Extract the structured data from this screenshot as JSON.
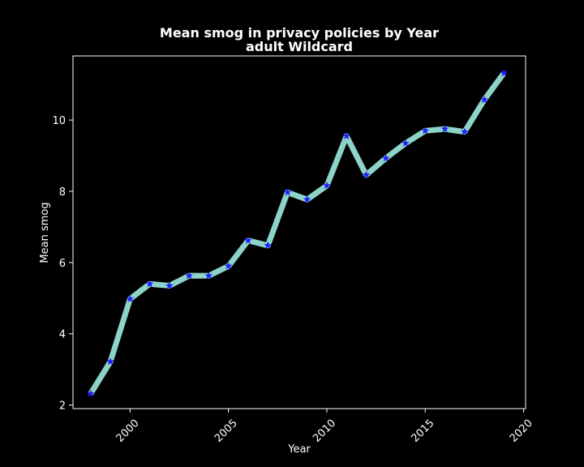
{
  "colors": {
    "background": "#000000",
    "foreground": "#ffffff",
    "line": "#8dd3c7",
    "marker": "#1f1fff"
  },
  "chart_data": {
    "type": "line",
    "title": "Mean smog in privacy policies by Year",
    "subtitle": "adult Wildcard",
    "xlabel": "Year",
    "ylabel": "Mean smog",
    "xlim": [
      1997.1,
      2020.1
    ],
    "ylim": [
      1.9,
      11.8
    ],
    "xticks": [
      2000,
      2005,
      2010,
      2015,
      2020
    ],
    "xtick_labels": [
      "2000",
      "2005",
      "2010",
      "2015",
      "2020"
    ],
    "yticks": [
      2,
      4,
      6,
      8,
      10
    ],
    "ytick_labels": [
      "2",
      "4",
      "6",
      "8",
      "10"
    ],
    "grid": false,
    "marker": "star",
    "series": [
      {
        "x": [
          1998,
          1999,
          2000,
          2001,
          2002,
          2003,
          2004,
          2005,
          2006,
          2007,
          2008,
          2009,
          2010,
          2011,
          2012,
          2013,
          2014,
          2015,
          2016,
          2017,
          2018,
          2019
        ],
        "values": [
          2.32,
          3.22,
          4.98,
          5.4,
          5.35,
          5.63,
          5.63,
          5.9,
          6.62,
          6.48,
          7.97,
          7.77,
          8.16,
          9.55,
          8.46,
          8.93,
          9.35,
          9.7,
          9.75,
          9.67,
          10.57,
          11.32
        ]
      }
    ]
  }
}
